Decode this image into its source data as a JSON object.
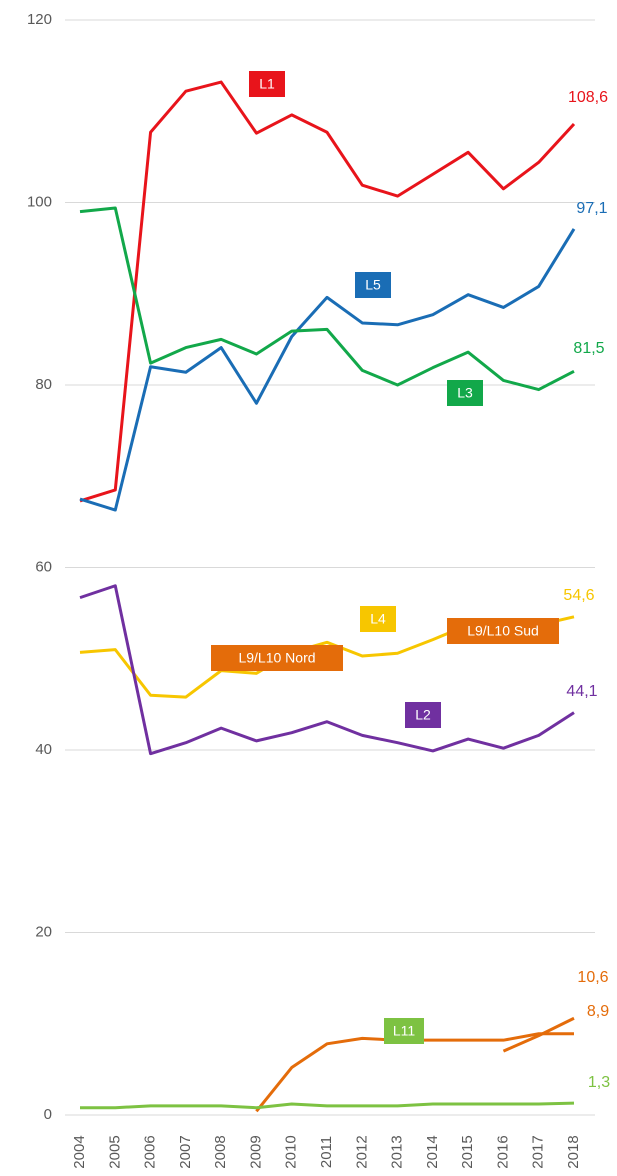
{
  "chart_data": {
    "type": "line",
    "x": [
      "2004",
      "2005",
      "2006",
      "2007",
      "2008",
      "2009",
      "2010",
      "2011",
      "2012",
      "2013",
      "2014",
      "2015",
      "2016",
      "2017",
      "2018"
    ],
    "ylim": [
      0,
      120
    ],
    "yticks": [
      0,
      20,
      40,
      60,
      80,
      100,
      120
    ],
    "grid": true,
    "series": [
      {
        "name": "L1",
        "color": "#e8141b",
        "values": [
          67.3,
          68.5,
          107.7,
          112.2,
          113.2,
          107.6,
          109.6,
          107.7,
          101.9,
          100.7,
          103.1,
          105.5,
          101.5,
          104.4,
          108.6
        ],
        "value_labels": [
          null,
          null,
          null,
          null,
          null,
          null,
          null,
          null,
          null,
          null,
          null,
          null,
          null,
          null,
          "108,6"
        ]
      },
      {
        "name": "L5",
        "color": "#1a6db5",
        "values": [
          67.5,
          66.3,
          82.0,
          81.4,
          84.1,
          78.0,
          85.3,
          89.6,
          86.8,
          86.6,
          87.7,
          89.9,
          88.5,
          90.8,
          97.1
        ],
        "value_labels": [
          null,
          null,
          null,
          null,
          null,
          null,
          null,
          null,
          null,
          null,
          null,
          null,
          null,
          null,
          "97,1"
        ]
      },
      {
        "name": "L3",
        "color": "#12a84a",
        "values": [
          99.0,
          99.4,
          82.4,
          84.1,
          85.0,
          83.4,
          85.9,
          86.1,
          81.6,
          80.0,
          81.9,
          83.6,
          80.5,
          79.5,
          81.5
        ],
        "value_labels": [
          null,
          null,
          null,
          null,
          null,
          null,
          null,
          null,
          null,
          null,
          null,
          null,
          null,
          null,
          "81,5"
        ]
      },
      {
        "name": "L4",
        "color": "#f7c600",
        "values": [
          50.7,
          51.0,
          46.0,
          45.8,
          48.7,
          48.4,
          50.7,
          51.8,
          50.3,
          50.6,
          52.1,
          53.7,
          52.7,
          53.7,
          54.6
        ],
        "value_labels": [
          null,
          null,
          null,
          null,
          null,
          null,
          null,
          null,
          null,
          null,
          null,
          null,
          null,
          null,
          "54,6"
        ]
      },
      {
        "name": "L2",
        "color": "#7030a0",
        "values": [
          56.7,
          58.0,
          39.6,
          40.8,
          42.4,
          41.0,
          41.9,
          43.1,
          41.6,
          40.8,
          39.9,
          41.2,
          40.2,
          41.6,
          44.1
        ],
        "value_labels": [
          null,
          null,
          null,
          null,
          null,
          null,
          null,
          null,
          null,
          null,
          null,
          null,
          null,
          null,
          "44,1"
        ]
      },
      {
        "name": "L9/L10 Nord",
        "color": "#e46c0a",
        "values": [
          null,
          null,
          null,
          null,
          null,
          0.4,
          5.2,
          7.8,
          8.4,
          8.2,
          8.2,
          8.2,
          8.2,
          8.9,
          8.9
        ],
        "value_labels": [
          null,
          null,
          null,
          null,
          null,
          null,
          null,
          null,
          null,
          null,
          null,
          null,
          null,
          null,
          "8,9"
        ]
      },
      {
        "name": "L9/L10 Sud",
        "color": "#e46c0a",
        "values": [
          null,
          null,
          null,
          null,
          null,
          null,
          null,
          null,
          null,
          null,
          null,
          null,
          7.0,
          8.7,
          10.6
        ],
        "value_labels": [
          null,
          null,
          null,
          null,
          null,
          null,
          null,
          null,
          null,
          null,
          null,
          null,
          null,
          null,
          "10,6"
        ]
      },
      {
        "name": "L11",
        "color": "#7dc242",
        "values": [
          0.8,
          0.8,
          1.0,
          1.0,
          1.0,
          0.8,
          1.2,
          1.0,
          1.0,
          1.0,
          1.2,
          1.2,
          1.2,
          1.2,
          1.3
        ],
        "value_labels": [
          null,
          null,
          null,
          null,
          null,
          null,
          null,
          null,
          null,
          null,
          null,
          null,
          null,
          null,
          "1,3"
        ]
      }
    ]
  }
}
